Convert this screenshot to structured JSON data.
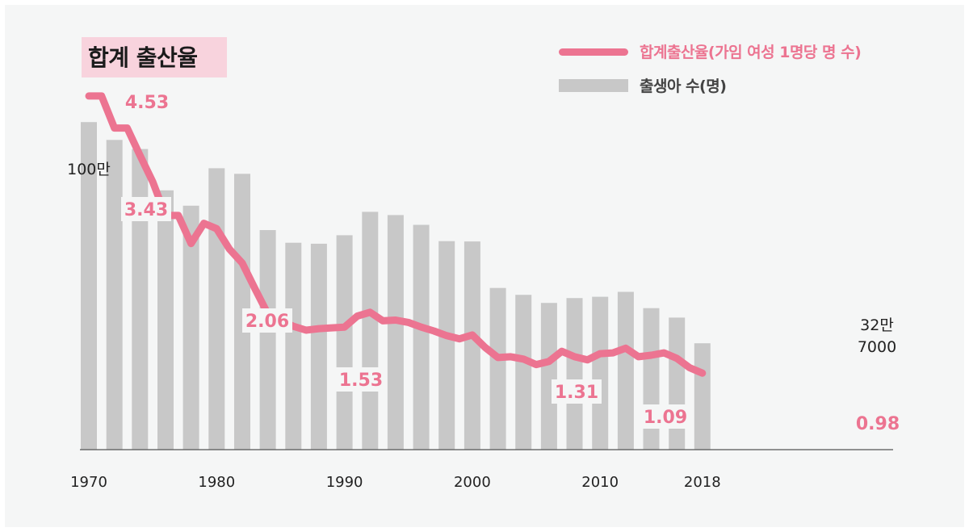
{
  "title": "합계 출산율",
  "legend": {
    "line_label": "합계출산율(가임 여성 1명당 명 수)",
    "bar_label": "출생아 수(명)"
  },
  "colors": {
    "line": "#ec7491",
    "bar": "#c8c8c8",
    "label_text": "#ec7491",
    "axis_text": "#222222"
  },
  "chart_data": {
    "type": "bar+line",
    "title": "합계 출산율",
    "categories": [
      1970,
      1971,
      1972,
      1973,
      1974,
      1975,
      1976,
      1977,
      1978,
      1979,
      1980,
      1981,
      1982,
      1983,
      1984,
      1985,
      1986,
      1987,
      1988,
      1989,
      1990,
      1991,
      1992,
      1993,
      1994,
      1995,
      1996,
      1997,
      1998,
      1999,
      2000,
      2001,
      2002,
      2003,
      2004,
      2005,
      2006,
      2007,
      2008,
      2009,
      2010,
      2011,
      2012,
      2013,
      2014,
      2015,
      2016,
      2017,
      2018
    ],
    "x_tick_labels": [
      "1970",
      "1980",
      "1990",
      "2000",
      "2010",
      "2018"
    ],
    "series": [
      {
        "name": "합계출산율(가임 여성 1명당 명 수)",
        "type": "line",
        "values": [
          4.53,
          4.53,
          4.12,
          4.12,
          3.77,
          3.43,
          3.0,
          3.0,
          2.64,
          2.9,
          2.83,
          2.57,
          2.39,
          2.06,
          1.74,
          1.66,
          1.58,
          1.53,
          1.55,
          1.56,
          1.57,
          1.71,
          1.76,
          1.65,
          1.66,
          1.63,
          1.57,
          1.52,
          1.46,
          1.42,
          1.47,
          1.31,
          1.18,
          1.19,
          1.16,
          1.09,
          1.13,
          1.26,
          1.19,
          1.15,
          1.23,
          1.24,
          1.3,
          1.19,
          1.21,
          1.24,
          1.17,
          1.05,
          0.98
        ]
      },
      {
        "name": "출생아 수(명)",
        "type": "bar",
        "values": [
          1007000,
          956000,
          952000,
          965000,
          924000,
          875000,
          797000,
          825000,
          750000,
          862000,
          865000,
          868000,
          848000,
          769000,
          675000,
          655000,
          636000,
          623000,
          633000,
          639000,
          659000,
          709000,
          731000,
          716000,
          721000,
          715000,
          691000,
          675000,
          641000,
          614000,
          640000,
          557000,
          497000,
          495000,
          476000,
          438000,
          451000,
          496000,
          466000,
          445000,
          470000,
          471000,
          485000,
          436000,
          435000,
          438000,
          406000,
          358000,
          327000
        ]
      }
    ],
    "labels": {
      "line_value_labels": [
        "4.53",
        "3.43",
        "2.06",
        "1.53",
        "1.31",
        "1.09",
        "0.98"
      ],
      "bar_annotation_top": "100만",
      "bar_annotation_end": [
        "32만",
        "7000"
      ]
    },
    "grid": false,
    "legend_position": "top-right"
  }
}
